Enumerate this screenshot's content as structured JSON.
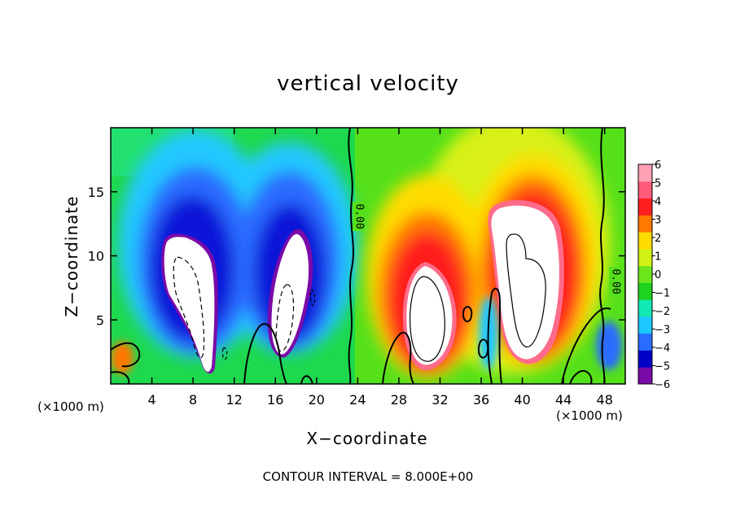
{
  "chart_data": {
    "type": "heatmap",
    "title": "vertical velocity",
    "xlabel": "X−coordinate",
    "ylabel": "Z−coordinate",
    "x_unit_left": "(×1000 m)",
    "x_unit_right": "(×1000 m)",
    "xlim": [
      0,
      50
    ],
    "ylim": [
      0,
      20
    ],
    "xticks": [
      4,
      8,
      12,
      16,
      20,
      24,
      28,
      32,
      36,
      40,
      44,
      48
    ],
    "xtick_labels": [
      "4",
      "8",
      "12",
      "16",
      "20",
      "24",
      "28",
      "32",
      "36",
      "40",
      "44",
      "48"
    ],
    "yticks": [
      5,
      10,
      15
    ],
    "ytick_labels": [
      "5",
      "10",
      "15"
    ],
    "colorbar": {
      "ticks": [
        6,
        5,
        4,
        3,
        2,
        1,
        0,
        -1,
        -2,
        -3,
        -4,
        -5,
        -6
      ],
      "labels": [
        "6",
        "5",
        "4",
        "3",
        "2",
        "1",
        "0",
        "−1",
        "−2",
        "−3",
        "−4",
        "−5",
        "−6"
      ],
      "range": [
        -6,
        6
      ],
      "colors": [
        "#7a0aa8",
        "#0000c8",
        "#2a6cff",
        "#1cc8ff",
        "#12e8b4",
        "#1ed21e",
        "#6ee61e",
        "#d2f014",
        "#ffdc00",
        "#ff7800",
        "#ff1e1e",
        "#ff5a78",
        "#ffa0b4"
      ]
    },
    "contour_labels": [
      "0.00",
      "0.00"
    ],
    "contour_interval_text": "CONTOUR INTERVAL = 8.000E+00",
    "features": [
      {
        "name": "downdraft-left",
        "x": 8.5,
        "z": 7,
        "value": -8
      },
      {
        "name": "downdraft-right",
        "x": 17.5,
        "z": 7.5,
        "value": -8
      },
      {
        "name": "updraft-left",
        "x": 31,
        "z": 6.5,
        "value": 8
      },
      {
        "name": "updraft-right",
        "x": 40.5,
        "z": 8,
        "value": 8
      }
    ],
    "grid": false,
    "legend": "right"
  }
}
